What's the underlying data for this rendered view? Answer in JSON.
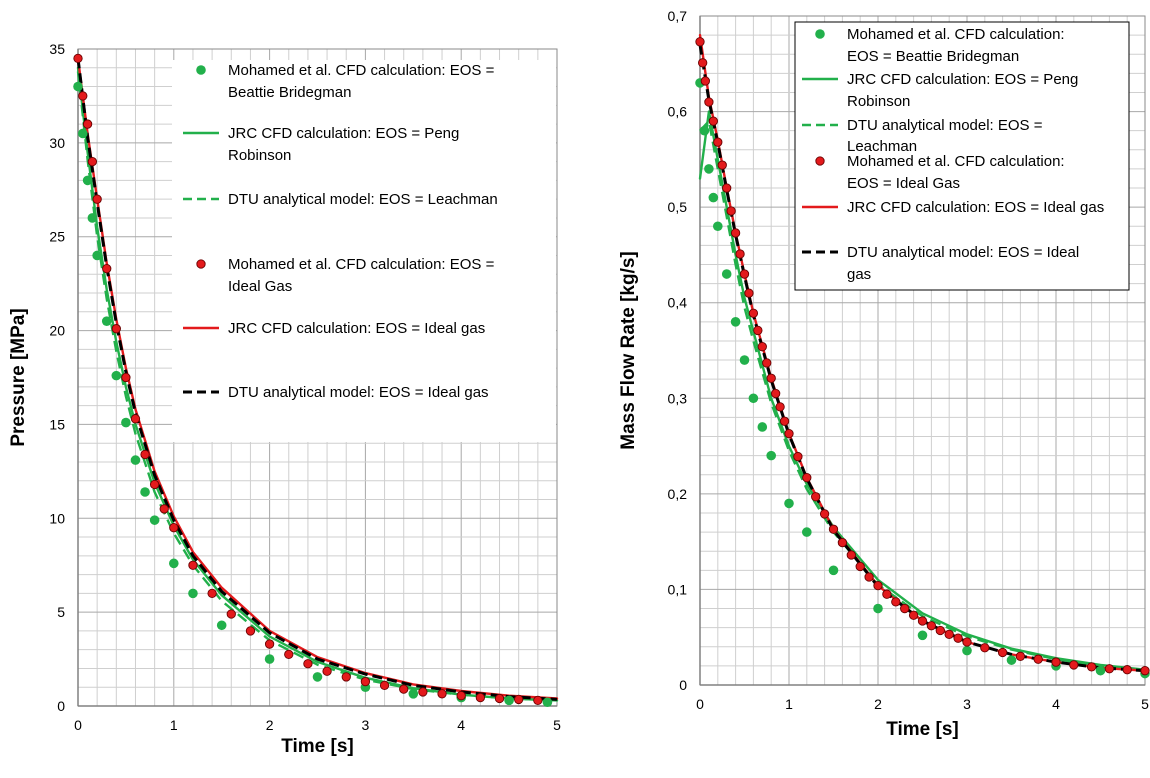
{
  "chart_data": [
    {
      "type": "line",
      "xlabel": "Time [s]",
      "ylabel": "Pressure [MPa]",
      "xlim": [
        0,
        5
      ],
      "ylim": [
        0,
        35
      ],
      "xticks": [
        "0",
        "1",
        "2",
        "3",
        "4",
        "5"
      ],
      "yticks": [
        "0",
        "5",
        "10",
        "15",
        "20",
        "25",
        "30",
        "35"
      ],
      "grid": true,
      "legend": "top-right",
      "series": [
        {
          "name": "Mohamed et al. CFD calculation: EOS = Beattie Bridegman",
          "style": "dots",
          "color": "#22b04b",
          "x": [
            0.0,
            0.05,
            0.1,
            0.15,
            0.2,
            0.3,
            0.4,
            0.5,
            0.6,
            0.7,
            0.8,
            1.0,
            1.2,
            1.5,
            2.0,
            2.5,
            3.0,
            3.5,
            4.0,
            4.5,
            4.9
          ],
          "y": [
            33.0,
            30.5,
            28.0,
            26.0,
            24.0,
            20.5,
            17.6,
            15.1,
            13.1,
            11.4,
            9.9,
            7.6,
            6.0,
            4.3,
            2.5,
            1.55,
            1.0,
            0.65,
            0.45,
            0.3,
            0.2
          ]
        },
        {
          "name": "JRC CFD calculation: EOS = Peng Robinson",
          "style": "solid",
          "color": "#22b04b",
          "x": [
            0.0,
            0.1,
            0.2,
            0.3,
            0.4,
            0.5,
            0.6,
            0.8,
            1.0,
            1.2,
            1.5,
            2.0,
            2.5,
            3.0,
            3.5,
            4.0,
            4.5,
            5.0
          ],
          "y": [
            34.0,
            29.5,
            25.5,
            22.2,
            19.4,
            17.0,
            15.0,
            11.9,
            9.6,
            7.8,
            5.9,
            3.7,
            2.35,
            1.5,
            0.95,
            0.6,
            0.4,
            0.3
          ]
        },
        {
          "name": "DTU analytical model: EOS = Leachman",
          "style": "dashed",
          "color": "#22b04b",
          "x": [
            0.0,
            0.1,
            0.2,
            0.3,
            0.4,
            0.5,
            0.6,
            0.8,
            1.0,
            1.2,
            1.5,
            2.0,
            2.5,
            3.0,
            3.5,
            4.0,
            4.5,
            5.0
          ],
          "y": [
            33.8,
            29.1,
            25.0,
            21.7,
            18.9,
            16.5,
            14.5,
            11.4,
            9.2,
            7.5,
            5.6,
            3.5,
            2.2,
            1.4,
            0.9,
            0.6,
            0.4,
            0.3
          ]
        },
        {
          "name": "Mohamed et al. CFD calculation: EOS = Ideal Gas",
          "style": "dots",
          "color": "#e31a1c",
          "x": [
            0.0,
            0.05,
            0.1,
            0.15,
            0.2,
            0.3,
            0.4,
            0.5,
            0.6,
            0.7,
            0.8,
            0.9,
            1.0,
            1.2,
            1.4,
            1.6,
            1.8,
            2.0,
            2.2,
            2.4,
            2.6,
            2.8,
            3.0,
            3.2,
            3.4,
            3.6,
            3.8,
            4.0,
            4.2,
            4.4,
            4.6,
            4.8
          ],
          "y": [
            34.5,
            32.5,
            31.0,
            29.0,
            27.0,
            23.3,
            20.1,
            17.5,
            15.3,
            13.4,
            11.8,
            10.5,
            9.5,
            7.5,
            6.0,
            4.9,
            4.0,
            3.3,
            2.75,
            2.25,
            1.85,
            1.55,
            1.3,
            1.1,
            0.9,
            0.75,
            0.65,
            0.55,
            0.45,
            0.4,
            0.35,
            0.3
          ]
        },
        {
          "name": "JRC CFD calculation: EOS = Ideal gas",
          "style": "solid",
          "color": "#e31a1c",
          "x": [
            0.0,
            0.1,
            0.2,
            0.3,
            0.4,
            0.5,
            0.6,
            0.8,
            1.0,
            1.2,
            1.5,
            2.0,
            2.5,
            3.0,
            3.5,
            4.0,
            4.5,
            5.0
          ],
          "y": [
            34.5,
            30.5,
            27.0,
            23.6,
            20.6,
            18.0,
            15.8,
            12.5,
            10.1,
            8.2,
            6.3,
            4.0,
            2.6,
            1.75,
            1.15,
            0.8,
            0.55,
            0.4
          ]
        },
        {
          "name": "DTU analytical model: EOS = Ideal gas",
          "style": "dashed",
          "color": "#000000",
          "x": [
            0.0,
            0.1,
            0.2,
            0.3,
            0.4,
            0.5,
            0.6,
            0.8,
            1.0,
            1.2,
            1.5,
            2.0,
            2.5,
            3.0,
            3.5,
            4.0,
            4.5,
            5.0
          ],
          "y": [
            34.5,
            30.3,
            26.8,
            23.4,
            20.4,
            17.8,
            15.6,
            12.3,
            9.9,
            8.0,
            6.1,
            3.9,
            2.5,
            1.7,
            1.1,
            0.75,
            0.5,
            0.35
          ]
        }
      ]
    },
    {
      "type": "line",
      "xlabel": "Time [s]",
      "ylabel": "Mass Flow Rate [kg/s]",
      "xlim": [
        0,
        5
      ],
      "ylim": [
        0,
        0.7
      ],
      "xticks": [
        "0",
        "1",
        "2",
        "3",
        "4",
        "5"
      ],
      "yticks": [
        "0",
        "0,1",
        "0,2",
        "0,3",
        "0,4",
        "0,5",
        "0,6",
        "0,7"
      ],
      "grid": true,
      "legend": "top-right",
      "series": [
        {
          "name": "Mohamed et al. CFD calculation: EOS = Beattie Bridegman",
          "style": "dots",
          "color": "#22b04b",
          "x": [
            0.0,
            0.05,
            0.1,
            0.15,
            0.2,
            0.3,
            0.4,
            0.5,
            0.6,
            0.7,
            0.8,
            1.0,
            1.2,
            1.5,
            2.0,
            2.5,
            3.0,
            3.5,
            4.0,
            4.5,
            5.0
          ],
          "y": [
            0.63,
            0.58,
            0.54,
            0.51,
            0.48,
            0.43,
            0.38,
            0.34,
            0.3,
            0.27,
            0.24,
            0.19,
            0.16,
            0.12,
            0.08,
            0.052,
            0.036,
            0.026,
            0.02,
            0.015,
            0.012
          ]
        },
        {
          "name": "JRC CFD calculation: EOS = Peng Robinson",
          "style": "solid",
          "color": "#22b04b",
          "x": [
            0.0,
            0.1,
            0.2,
            0.3,
            0.4,
            0.5,
            0.6,
            0.8,
            1.0,
            1.2,
            1.5,
            2.0,
            2.5,
            3.0,
            3.5,
            4.0,
            4.5,
            5.0
          ],
          "y": [
            0.53,
            0.6,
            0.55,
            0.5,
            0.45,
            0.405,
            0.37,
            0.3,
            0.25,
            0.21,
            0.165,
            0.11,
            0.075,
            0.053,
            0.038,
            0.028,
            0.021,
            0.016
          ]
        },
        {
          "name": "DTU analytical model: EOS = Leachman",
          "style": "dashed",
          "color": "#22b04b",
          "x": [
            0.0,
            0.1,
            0.2,
            0.3,
            0.4,
            0.5,
            0.6,
            0.8,
            1.0,
            1.2,
            1.5,
            2.0,
            2.5,
            3.0,
            3.5,
            4.0,
            4.5,
            5.0
          ],
          "y": [
            0.58,
            0.59,
            0.54,
            0.49,
            0.44,
            0.395,
            0.36,
            0.295,
            0.245,
            0.205,
            0.16,
            0.105,
            0.072,
            0.051,
            0.037,
            0.027,
            0.02,
            0.015
          ]
        },
        {
          "name": "Mohamed et al. CFD calculation: EOS = Ideal Gas",
          "style": "dots",
          "color": "#e31a1c",
          "x": [
            0.0,
            0.03,
            0.06,
            0.1,
            0.15,
            0.2,
            0.25,
            0.3,
            0.35,
            0.4,
            0.45,
            0.5,
            0.55,
            0.6,
            0.65,
            0.7,
            0.75,
            0.8,
            0.85,
            0.9,
            0.95,
            1.0,
            1.1,
            1.2,
            1.3,
            1.4,
            1.5,
            1.6,
            1.7,
            1.8,
            1.9,
            2.0,
            2.1,
            2.2,
            2.3,
            2.4,
            2.5,
            2.6,
            2.7,
            2.8,
            2.9,
            3.0,
            3.2,
            3.4,
            3.6,
            3.8,
            4.0,
            4.2,
            4.4,
            4.6,
            4.8,
            5.0
          ],
          "y": [
            0.673,
            0.651,
            0.632,
            0.61,
            0.59,
            0.568,
            0.544,
            0.52,
            0.496,
            0.473,
            0.451,
            0.43,
            0.41,
            0.389,
            0.371,
            0.354,
            0.337,
            0.321,
            0.305,
            0.291,
            0.276,
            0.263,
            0.239,
            0.217,
            0.197,
            0.179,
            0.163,
            0.149,
            0.136,
            0.124,
            0.113,
            0.104,
            0.095,
            0.087,
            0.08,
            0.073,
            0.067,
            0.062,
            0.057,
            0.053,
            0.049,
            0.045,
            0.039,
            0.034,
            0.03,
            0.027,
            0.024,
            0.021,
            0.019,
            0.017,
            0.016,
            0.015
          ]
        },
        {
          "name": "JRC CFD calculation: EOS = Ideal gas",
          "style": "solid",
          "color": "#e31a1c",
          "x": [
            0.0,
            0.1,
            0.2,
            0.3,
            0.4,
            0.5,
            0.6,
            0.8,
            1.0,
            1.2,
            1.5,
            2.0,
            2.5,
            3.0,
            3.5,
            4.0,
            4.5,
            5.0
          ],
          "y": [
            0.68,
            0.615,
            0.57,
            0.52,
            0.473,
            0.43,
            0.389,
            0.321,
            0.263,
            0.217,
            0.163,
            0.104,
            0.067,
            0.045,
            0.032,
            0.024,
            0.018,
            0.015
          ]
        },
        {
          "name": "DTU analytical model: EOS = Ideal gas",
          "style": "dashed",
          "color": "#000000",
          "x": [
            0.0,
            0.1,
            0.2,
            0.3,
            0.4,
            0.5,
            0.6,
            0.8,
            1.0,
            1.2,
            1.5,
            2.0,
            2.5,
            3.0,
            3.5,
            4.0,
            4.5,
            5.0
          ],
          "y": [
            0.67,
            0.612,
            0.567,
            0.518,
            0.471,
            0.428,
            0.387,
            0.319,
            0.262,
            0.216,
            0.162,
            0.103,
            0.067,
            0.045,
            0.032,
            0.024,
            0.018,
            0.015
          ]
        }
      ]
    }
  ],
  "legend_lines": [
    [
      [
        "Mohamed et al. CFD calculation: EOS =",
        "Beattie Bridegman"
      ],
      [
        "JRC CFD calculation: EOS = Peng",
        "Robinson"
      ],
      [
        "DTU analytical model: EOS = Leachman"
      ],
      [
        "Mohamed et al. CFD calculation: EOS =",
        "Ideal Gas"
      ],
      [
        "JRC CFD calculation: EOS = Ideal gas"
      ],
      [
        "DTU analytical model: EOS = Ideal gas"
      ]
    ],
    [
      [
        "Mohamed et al. CFD calculation:",
        "EOS = Beattie Bridegman"
      ],
      [
        "JRC CFD calculation: EOS = Peng",
        "Robinson"
      ],
      [
        "DTU analytical model: EOS =",
        "Leachman"
      ],
      [
        "Mohamed et al. CFD calculation:",
        "EOS = Ideal Gas"
      ],
      [
        "JRC CFD calculation: EOS = Ideal gas"
      ],
      [
        "DTU analytical model: EOS = Ideal",
        "gas"
      ]
    ]
  ]
}
